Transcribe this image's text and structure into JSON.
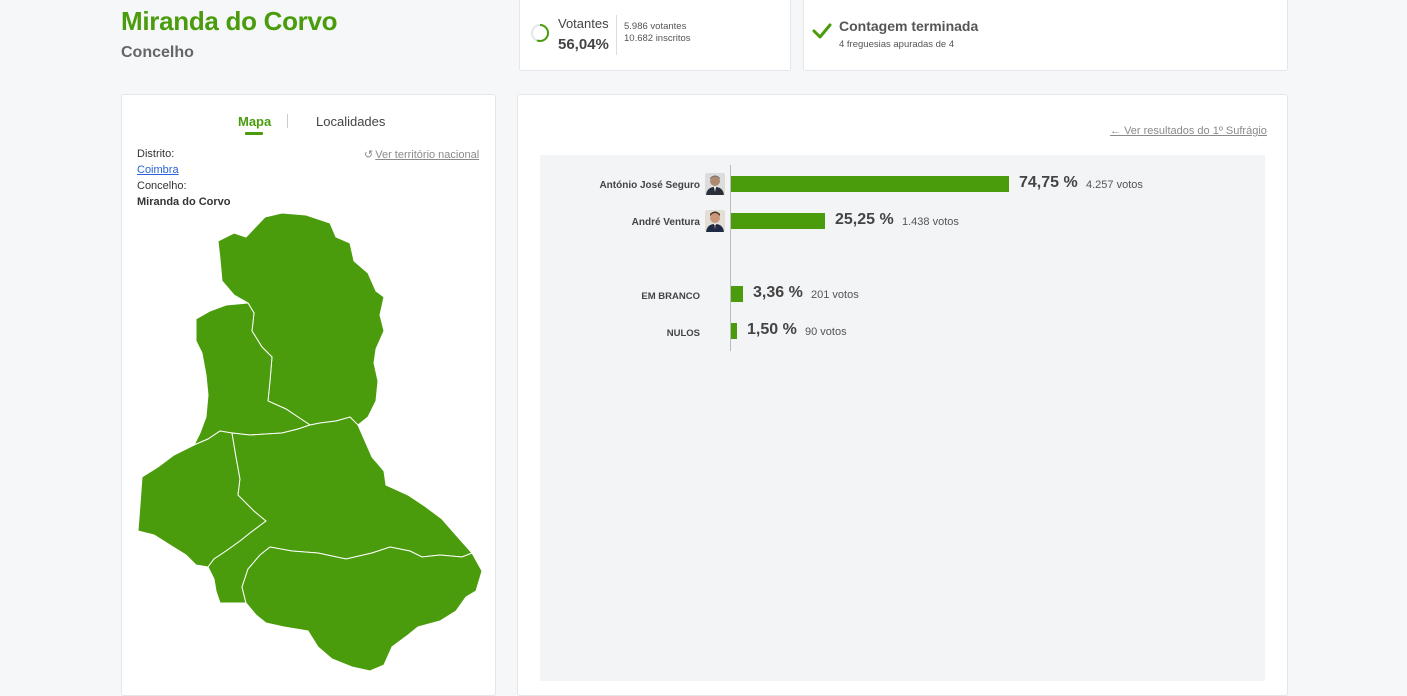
{
  "header": {
    "title": "Miranda do Corvo",
    "subtitle": "Concelho"
  },
  "votantes": {
    "label": "Votantes",
    "percent": "56,04%",
    "percent_value": 56.04,
    "votantes": "5.986 votantes",
    "inscritos": "10.682 inscritos"
  },
  "contagem": {
    "title": "Contagem terminada",
    "subtitle": "4 freguesias apuradas de 4"
  },
  "map_panel": {
    "tabs": [
      "Mapa",
      "Localidades"
    ],
    "distrito_label": "Distrito:",
    "distrito_value": "Coimbra",
    "concelho_label": "Concelho:",
    "concelho_value": "Miranda do Corvo",
    "ver_nacional": "Ver território nacional"
  },
  "results": {
    "ver_sufragio": "Ver resultados do 1º Sufrágio",
    "candidates": [
      {
        "name": "António José Seguro",
        "percent": "74,75 %",
        "percent_value": 74.75,
        "votes": "4.257 votos"
      },
      {
        "name": "André Ventura",
        "percent": "25,25 %",
        "percent_value": 25.25,
        "votes": "1.438 votos"
      }
    ],
    "others": [
      {
        "name": "EM BRANCO",
        "percent": "3,36 %",
        "percent_value": 3.36,
        "votes": "201 votos"
      },
      {
        "name": "NULOS",
        "percent": "1,50 %",
        "percent_value": 1.5,
        "votes": "90 votos"
      }
    ]
  },
  "colors": {
    "accent": "#4a9c0c",
    "link": "#2a62d8",
    "background": "#f5f7f9"
  }
}
